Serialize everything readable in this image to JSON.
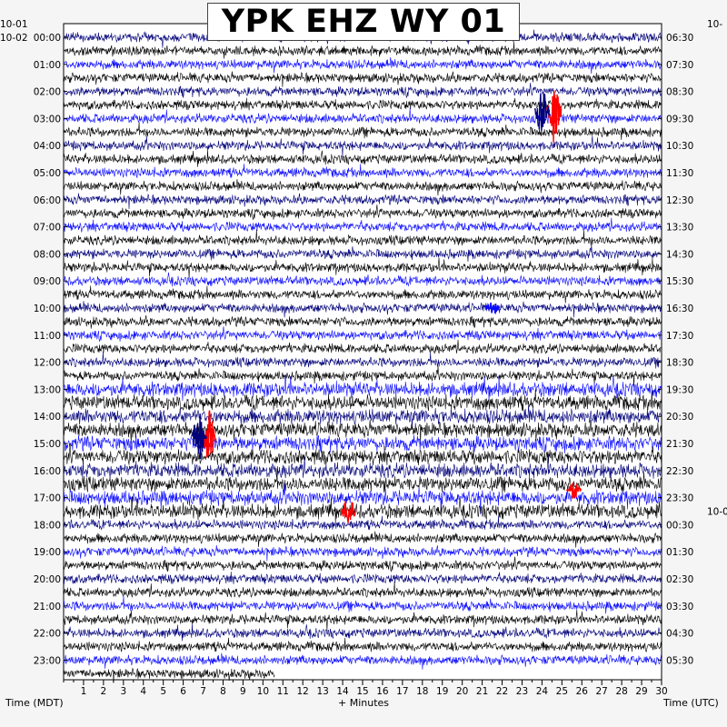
{
  "chart_data": {
    "type": "helicorder",
    "title": "YPK EHZ WY 01",
    "xlabel": "+ Minutes",
    "left_axis_label": "Time (MDT)",
    "right_axis_label": "Time (UTC)",
    "x_ticks": [
      1,
      2,
      3,
      4,
      5,
      6,
      7,
      8,
      9,
      10,
      11,
      12,
      13,
      14,
      15,
      16,
      17,
      18,
      19,
      20,
      21,
      22,
      23,
      24,
      25,
      26,
      27,
      28,
      29,
      30
    ],
    "xlim": [
      0,
      30
    ],
    "minutes_per_line": 30,
    "line_count": 48,
    "left_date_labels": [
      {
        "text": "10-01",
        "line": -1
      },
      {
        "text": "10-02",
        "line": 0
      }
    ],
    "right_date_labels": [
      {
        "text": "10-",
        "line": -1
      },
      {
        "text": "10-0",
        "line": 35
      }
    ],
    "left_time_labels": [
      "00:00",
      "01:00",
      "02:00",
      "03:00",
      "04:00",
      "05:00",
      "06:00",
      "07:00",
      "08:00",
      "09:00",
      "10:00",
      "11:00",
      "12:00",
      "13:00",
      "14:00",
      "15:00",
      "16:00",
      "17:00",
      "18:00",
      "19:00",
      "20:00",
      "21:00",
      "22:00",
      "23:00"
    ],
    "right_time_labels": [
      "06:30",
      "07:30",
      "08:30",
      "09:30",
      "10:30",
      "11:30",
      "12:30",
      "13:30",
      "14:30",
      "15:30",
      "16:30",
      "17:30",
      "18:30",
      "19:30",
      "20:30",
      "21:30",
      "22:30",
      "23:30",
      "00:30",
      "01:30",
      "02:30",
      "03:30",
      "04:30",
      "05:30"
    ],
    "trace_colors": [
      "#00007a",
      "#000000",
      "#0a0aff",
      "#000000"
    ],
    "event_color": "#ff0000",
    "last_line_end_minute": 10.6,
    "events": [
      {
        "line": 4,
        "minute": 24.6,
        "lines_span": 4,
        "amplitude": 1.0,
        "color": "#ff0000"
      },
      {
        "line": 4,
        "minute": 24.0,
        "lines_span": 4,
        "amplitude": 0.8,
        "color": "#00007a"
      },
      {
        "line": 28,
        "minute": 7.3,
        "lines_span": 4,
        "amplitude": 1.0,
        "color": "#ff0000"
      },
      {
        "line": 28,
        "minute": 6.8,
        "lines_span": 4,
        "amplitude": 0.8,
        "color": "#00007a"
      },
      {
        "line": 34,
        "minute": 14.3,
        "lines_span": 3,
        "amplitude": 0.6,
        "color": "#ff0000"
      },
      {
        "line": 33,
        "minute": 25.6,
        "lines_span": 2,
        "amplitude": 0.4,
        "color": "#ff0000"
      },
      {
        "line": 20,
        "minute": 21.5,
        "lines_span": 1,
        "amplitude": 0.5,
        "color": "#0a0aff"
      }
    ],
    "noisy_lines": [
      26,
      27,
      28,
      29,
      30,
      31,
      32,
      33,
      34,
      35
    ],
    "grid": false
  }
}
